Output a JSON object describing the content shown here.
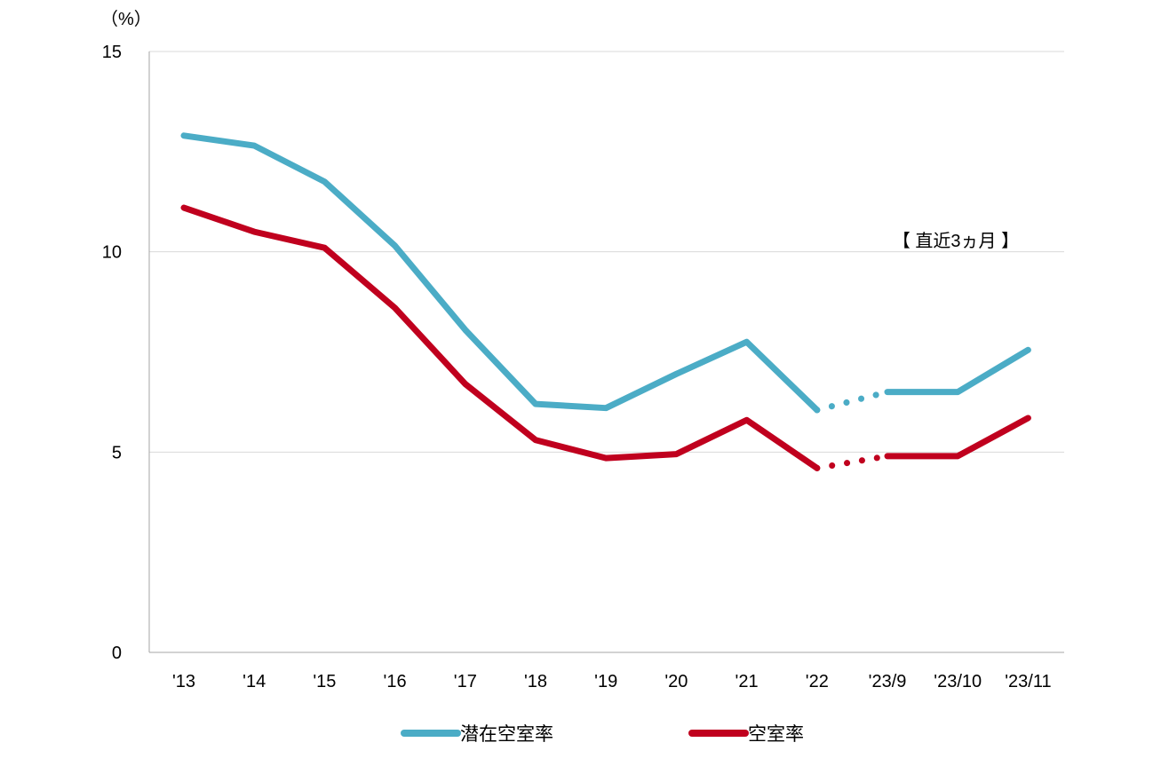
{
  "chart_data": {
    "type": "line",
    "title": "",
    "xlabel": "",
    "ylabel": "（%）",
    "categories": [
      "'13",
      "'14",
      "'15",
      "'16",
      "'17",
      "'18",
      "'19",
      "'20",
      "'21",
      "'22",
      "'23/9",
      "'23/10",
      "'23/11"
    ],
    "ylim": [
      0,
      15
    ],
    "yticks": [
      0,
      5,
      10,
      15
    ],
    "grid": "horizontal",
    "legend": "bottom",
    "annotation": "【 直近3ヵ月 】",
    "series": [
      {
        "name": "潜在空室率",
        "color": "#4bacc6",
        "values": [
          12.9,
          12.65,
          11.75,
          10.15,
          8.05,
          6.2,
          6.1,
          6.95,
          7.75,
          6.05,
          6.5,
          6.5,
          7.55
        ]
      },
      {
        "name": "空室率",
        "color": "#c0001e",
        "values": [
          11.1,
          10.5,
          10.1,
          8.6,
          6.7,
          5.3,
          4.85,
          4.95,
          5.8,
          4.6,
          4.9,
          4.9,
          5.85
        ]
      }
    ],
    "dotted_segment_after_index": 9
  }
}
